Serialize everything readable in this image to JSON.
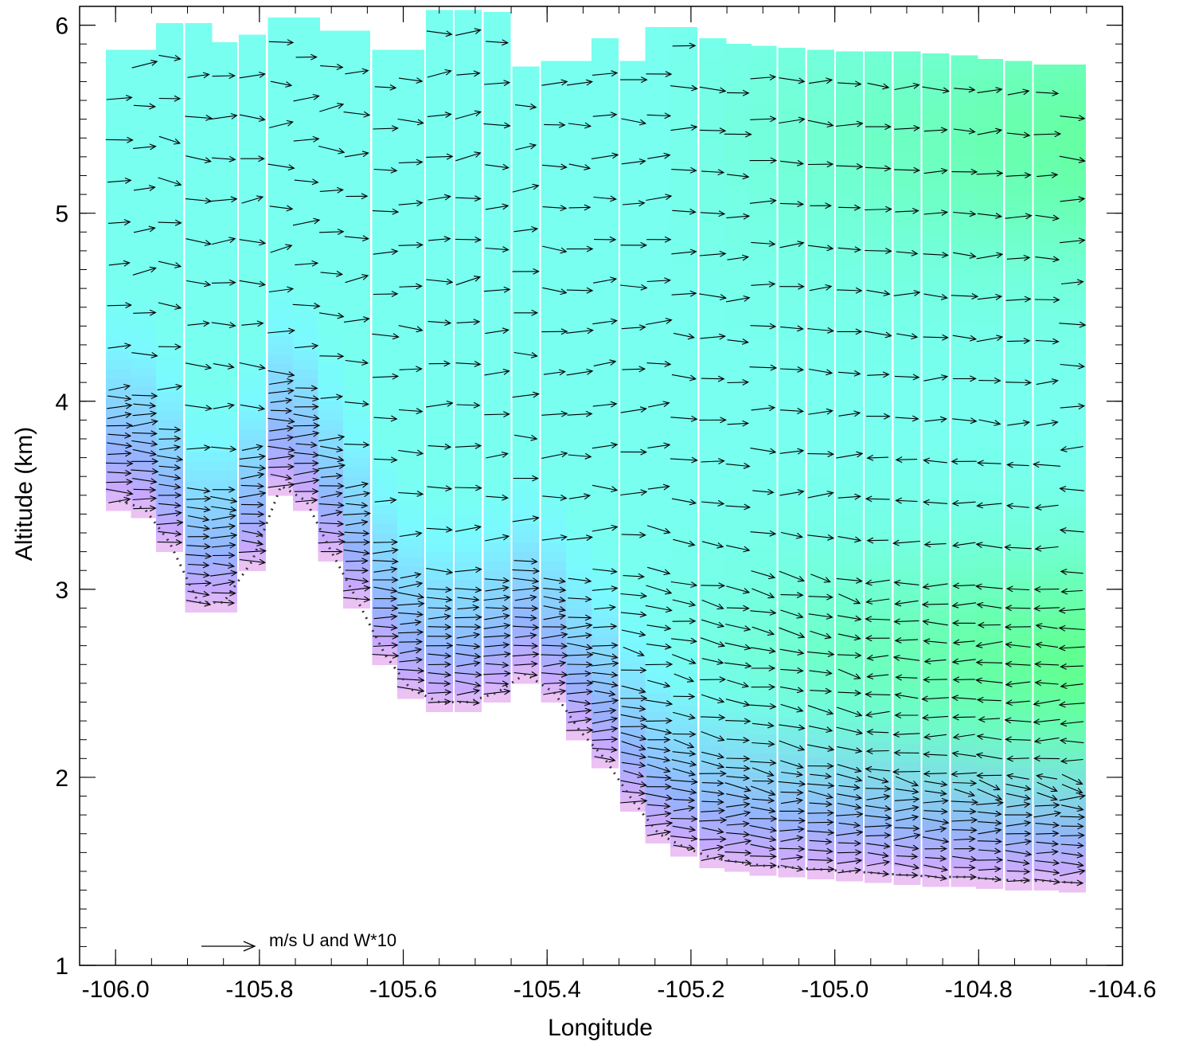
{
  "chart_data": {
    "type": "vector field cross-section",
    "xlabel": "Longitude",
    "ylabel": "Altitude (km)",
    "xlim": [
      -106.05,
      -104.6
    ],
    "ylim": [
      1.0,
      6.1
    ],
    "xticks": [
      -106.0,
      -105.8,
      -105.6,
      -105.4,
      -105.2,
      -105.0,
      -104.8,
      -104.6
    ],
    "xtick_labels": [
      "-106.0",
      "-105.8",
      "-105.6",
      "-105.4",
      "-105.2",
      "-105.0",
      "-104.8",
      "-104.6"
    ],
    "yticks": [
      1,
      2,
      3,
      4,
      5,
      6
    ],
    "ytick_labels": [
      "1",
      "2",
      "3",
      "4",
      "5",
      "6"
    ],
    "x_minor_step": 0.05,
    "y_minor_step": 0.1,
    "reference_vector_label": "m/s  U and W*10",
    "colors": {
      "low_altitude": "#f0c8f0",
      "mid_low": "#b0a8ff",
      "blue": "#88c8ff",
      "cyan": "#78fff8",
      "green": "#5cff7c"
    },
    "terrain": [
      [
        -105.995,
        3.42
      ],
      [
        -105.96,
        3.38
      ],
      [
        -105.925,
        3.2
      ],
      [
        -105.885,
        2.88
      ],
      [
        -105.85,
        2.88
      ],
      [
        -105.81,
        3.1
      ],
      [
        -105.77,
        3.5
      ],
      [
        -105.735,
        3.42
      ],
      [
        -105.7,
        3.15
      ],
      [
        -105.665,
        2.9
      ],
      [
        -105.625,
        2.6
      ],
      [
        -105.59,
        2.42
      ],
      [
        -105.55,
        2.35
      ],
      [
        -105.51,
        2.35
      ],
      [
        -105.47,
        2.4
      ],
      [
        -105.43,
        2.5
      ],
      [
        -105.39,
        2.4
      ],
      [
        -105.355,
        2.2
      ],
      [
        -105.32,
        2.05
      ],
      [
        -105.28,
        1.82
      ],
      [
        -105.245,
        1.65
      ],
      [
        -105.21,
        1.58
      ],
      [
        -105.17,
        1.52
      ],
      [
        -105.135,
        1.5
      ],
      [
        -105.1,
        1.48
      ],
      [
        -105.06,
        1.47
      ],
      [
        -105.02,
        1.46
      ],
      [
        -104.98,
        1.45
      ],
      [
        -104.94,
        1.44
      ],
      [
        -104.9,
        1.43
      ],
      [
        -104.86,
        1.42
      ],
      [
        -104.82,
        1.42
      ],
      [
        -104.785,
        1.41
      ],
      [
        -104.745,
        1.4
      ],
      [
        -104.705,
        1.4
      ],
      [
        -104.67,
        1.39
      ]
    ],
    "top": [
      [
        -105.995,
        5.87
      ],
      [
        -105.96,
        5.87
      ],
      [
        -105.925,
        6.01
      ],
      [
        -105.885,
        6.01
      ],
      [
        -105.85,
        5.91
      ],
      [
        -105.81,
        5.95
      ],
      [
        -105.77,
        6.04
      ],
      [
        -105.735,
        6.04
      ],
      [
        -105.7,
        5.97
      ],
      [
        -105.665,
        5.97
      ],
      [
        -105.625,
        5.87
      ],
      [
        -105.59,
        5.87
      ],
      [
        -105.55,
        6.08
      ],
      [
        -105.51,
        6.08
      ],
      [
        -105.47,
        6.07
      ],
      [
        -105.43,
        5.78
      ],
      [
        -105.39,
        5.81
      ],
      [
        -105.355,
        5.81
      ],
      [
        -105.32,
        5.93
      ],
      [
        -105.28,
        5.81
      ],
      [
        -105.245,
        5.99
      ],
      [
        -105.21,
        5.99
      ],
      [
        -105.17,
        5.93
      ],
      [
        -105.135,
        5.9
      ],
      [
        -105.1,
        5.89
      ],
      [
        -105.06,
        5.88
      ],
      [
        -105.02,
        5.87
      ],
      [
        -104.98,
        5.86
      ],
      [
        -104.94,
        5.86
      ],
      [
        -104.9,
        5.86
      ],
      [
        -104.86,
        5.85
      ],
      [
        -104.82,
        5.84
      ],
      [
        -104.785,
        5.82
      ],
      [
        -104.745,
        5.81
      ],
      [
        -104.705,
        5.79
      ],
      [
        -104.67,
        5.79
      ]
    ]
  }
}
